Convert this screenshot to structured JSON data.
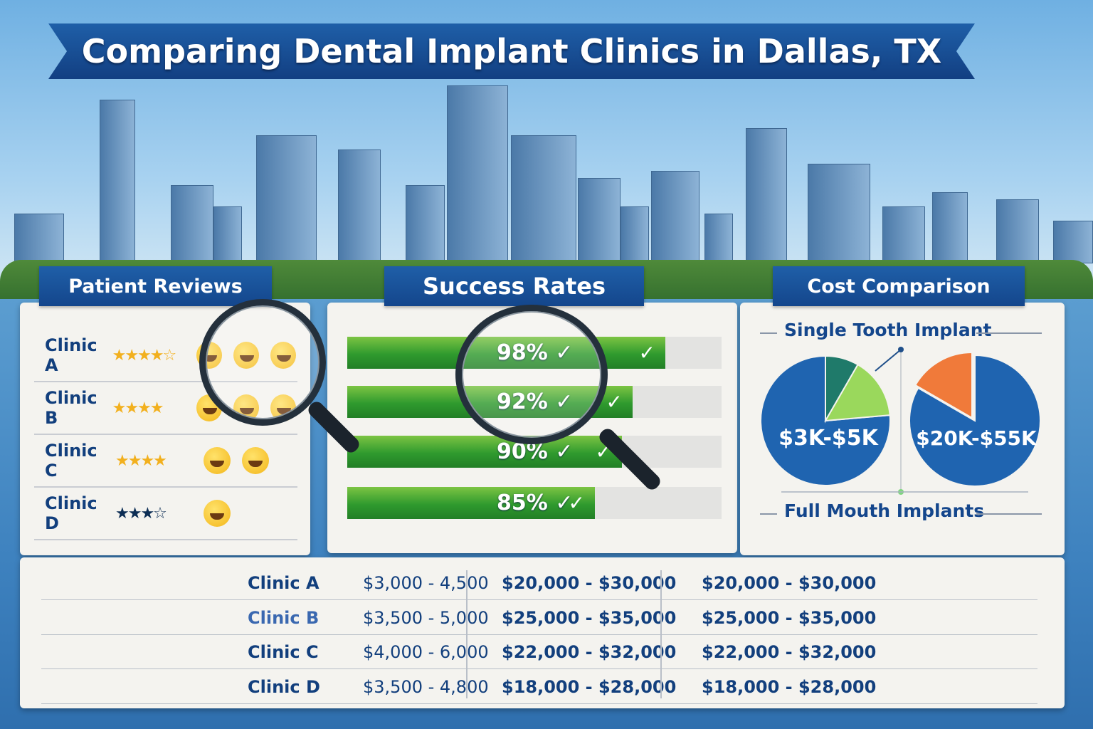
{
  "title": "Comparing Dental Implant Clinics in Dallas, TX",
  "reviews": {
    "header": "Patient Reviews",
    "rows": [
      {
        "clinic": "Clinic A",
        "stars": 4.5,
        "smileys": 3
      },
      {
        "clinic": "Clinic B",
        "stars": 4,
        "smileys": 3
      },
      {
        "clinic": "Clinic C",
        "stars": 4,
        "smileys": 2
      },
      {
        "clinic": "Clinic D",
        "stars": 3.5,
        "smileys": 1
      }
    ]
  },
  "success": {
    "header": "Success Rates",
    "bars": [
      {
        "label": "98%",
        "value": 98
      },
      {
        "label": "92%",
        "value": 92
      },
      {
        "label": "90%",
        "value": 90
      },
      {
        "label": "85%",
        "value": 85
      }
    ],
    "color": "#2f9a2e"
  },
  "cost": {
    "header": "Cost Comparison",
    "single_label": "Single Tooth Implant",
    "full_label": "Full Mouth Implants",
    "single_range": "$3K-$5K",
    "full_range": "$20K-$55K",
    "colors": {
      "blue": "#1f64b0",
      "teal": "#1f7a6a",
      "green": "#9ad85c",
      "orange": "#f07a3a"
    }
  },
  "table": {
    "rows": [
      [
        "Clinic A",
        "$3,000 - 4,500",
        "$20,000 - $30,000",
        "$20,000 - $30,000"
      ],
      [
        "Clinic B",
        "$3,500 - 5,000",
        "$25,000 - $35,000",
        "$25,000 - $35,000"
      ],
      [
        "Clinic C",
        "$4,000 - 6,000",
        "$22,000 - $32,000",
        "$22,000 - $32,000"
      ],
      [
        "Clinic D",
        "$3,500 - 4,800",
        "$18,000 - $28,000",
        "$18,000 - $28,000"
      ]
    ]
  }
}
